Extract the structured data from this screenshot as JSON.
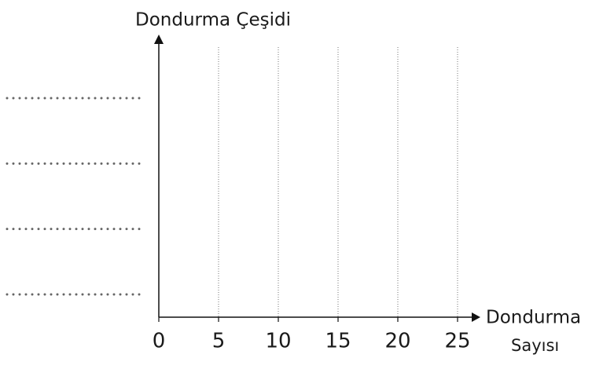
{
  "chart_data": {
    "type": "bar",
    "orientation": "horizontal",
    "ylabel": "Dondurma Çeşidi",
    "xlabel": [
      "Dondurma",
      "Sayısı"
    ],
    "categories": [
      null,
      null,
      null,
      null
    ],
    "values": [
      null,
      null,
      null,
      null
    ],
    "xlim": [
      0,
      25
    ],
    "xticks": [
      0,
      5,
      10,
      15,
      20,
      25
    ],
    "grid": true
  }
}
